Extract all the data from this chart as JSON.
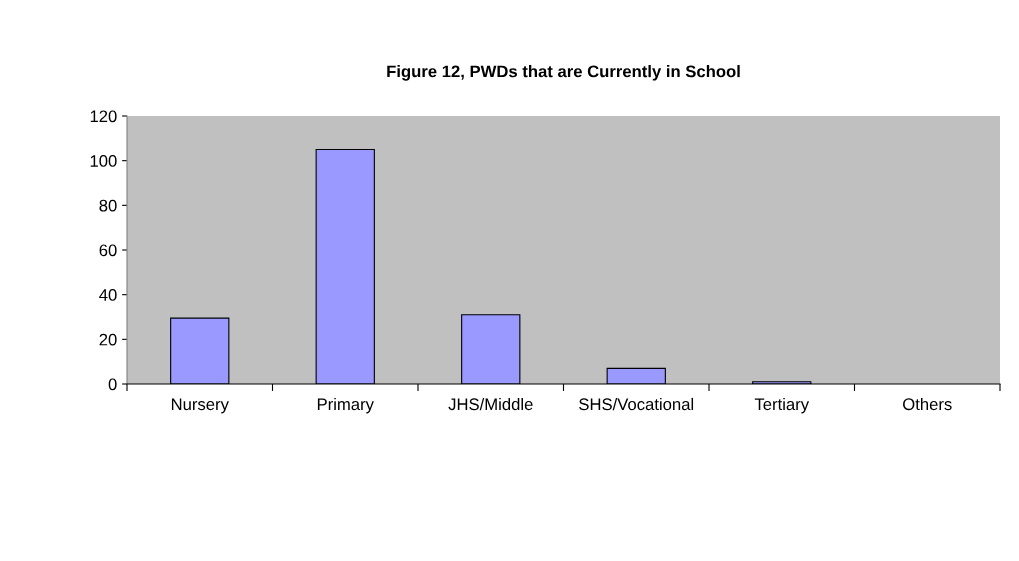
{
  "chart_data": {
    "type": "bar",
    "title": "Figure 12, PWDs that are Currently in School",
    "categories": [
      "Nursery",
      "Primary",
      "JHS/Middle",
      "SHS/Vocational",
      "Tertiary",
      "Others"
    ],
    "values": [
      29.5,
      105,
      31,
      7,
      1,
      null
    ],
    "color": "#9999ff",
    "ylim": [
      0,
      120
    ],
    "yticks": [
      0,
      20,
      40,
      60,
      80,
      100,
      120
    ],
    "grid": false
  }
}
